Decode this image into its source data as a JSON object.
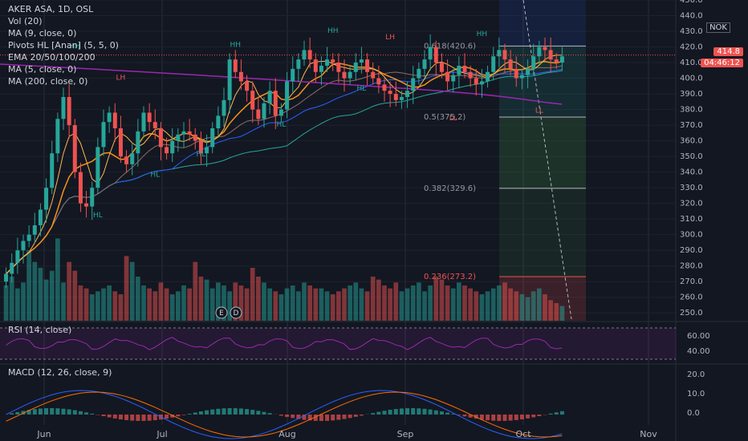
{
  "symbol_line": "AKER ASA, 1D, OSL",
  "indicators": [
    "Vol (20)",
    "MA (9, close, 0)",
    "Pivots HL [Anan] (5, 5, 0)",
    "EMA 20/50/100/200",
    "MA (5, close, 0)",
    "MA (200, close, 0)"
  ],
  "currency": "NOK",
  "last_price": "414.8",
  "countdown": "04:46:12",
  "rsi_label": "RSI (14, close)",
  "macd_label": "MACD (12, 26, close, 9)",
  "colors": {
    "background": "#131722",
    "up": "#26a69a",
    "down": "#ef5350",
    "ma_orange": "#f7931a",
    "ema_purple": "#9c27b0",
    "ema_blue": "#2962ff",
    "rsi": "#9c27b0"
  },
  "chart_data": {
    "type": "candlestick",
    "x_ticks": [
      "Jun",
      "Jul",
      "Aug",
      "Sep",
      "Oct",
      "Nov"
    ],
    "y_ticks": [
      "450.0",
      "440.0",
      "430.0",
      "420.0",
      "410.0",
      "400.0",
      "390.0",
      "380.0",
      "370.0",
      "360.0",
      "350.0",
      "340.0",
      "330.0",
      "320.0",
      "310.0",
      "300.0",
      "290.0",
      "280.0",
      "270.0",
      "260.0",
      "250.0"
    ],
    "ylim": [
      245,
      450
    ],
    "fib_levels": [
      {
        "label": "0.618(420.6)",
        "value": 420.6
      },
      {
        "label": "0.5(375.2)",
        "value": 375.2
      },
      {
        "label": "0.382(329.6)",
        "value": 329.6
      },
      {
        "label": "0.236(273.2)",
        "value": 273.2
      }
    ],
    "pivot_labels": [
      {
        "text": "HH",
        "date_index": 15,
        "value": 419
      },
      {
        "text": "LH",
        "date_index": 25,
        "value": 399
      },
      {
        "text": "HL",
        "date_index": 19,
        "value": 311
      },
      {
        "text": "HL",
        "date_index": 32,
        "value": 337
      },
      {
        "text": "HL",
        "date_index": 42,
        "value": 350
      },
      {
        "text": "HH",
        "date_index": 49,
        "value": 420
      },
      {
        "text": "HL",
        "date_index": 59,
        "value": 369
      },
      {
        "text": "HH",
        "date_index": 70,
        "value": 429
      },
      {
        "text": "LH",
        "date_index": 82,
        "value": 425
      },
      {
        "text": "HL",
        "date_index": 76,
        "value": 392
      },
      {
        "text": "HH",
        "date_index": 102,
        "value": 427
      },
      {
        "text": "LL",
        "date_index": 95,
        "value": 373
      },
      {
        "text": "LL",
        "date_index": 114,
        "value": 378
      }
    ],
    "events": [
      "E",
      "D"
    ],
    "rsi_ticks": [
      "60.00",
      "40.00"
    ],
    "macd_ticks": [
      "20.0",
      "10.0",
      "0.0"
    ],
    "closes": [
      275,
      282,
      290,
      296,
      300,
      306,
      316,
      330,
      352,
      374,
      388,
      370,
      340,
      320,
      318,
      330,
      356,
      372,
      378,
      368,
      350,
      345,
      352,
      366,
      378,
      372,
      368,
      356,
      352,
      360,
      364,
      366,
      364,
      360,
      352,
      356,
      368,
      376,
      386,
      412,
      404,
      398,
      392,
      380,
      374,
      384,
      392,
      376,
      380,
      398,
      406,
      412,
      418,
      412,
      404,
      408,
      412,
      410,
      404,
      400,
      404,
      410,
      412,
      404,
      400,
      396,
      392,
      390,
      386,
      388,
      392,
      400,
      406,
      412,
      420,
      410,
      404,
      398,
      402,
      408,
      404,
      400,
      396,
      398,
      404,
      414,
      418,
      412,
      406,
      400,
      402,
      406,
      414,
      420,
      418,
      412,
      410,
      414
    ],
    "volumes": [
      24,
      30,
      22,
      26,
      48,
      40,
      36,
      28,
      34,
      56,
      26,
      40,
      34,
      24,
      22,
      18,
      20,
      22,
      24,
      20,
      18,
      44,
      40,
      30,
      24,
      22,
      20,
      26,
      22,
      18,
      20,
      24,
      22,
      40,
      30,
      28,
      22,
      26,
      24,
      20,
      26,
      24,
      22,
      36,
      30,
      26,
      22,
      20,
      18,
      22,
      24,
      20,
      26,
      24,
      22,
      22,
      20,
      18,
      20,
      22,
      24,
      26,
      22,
      20,
      30,
      28,
      24,
      22,
      26,
      20,
      22,
      24,
      26,
      20,
      24,
      30,
      28,
      24,
      22,
      26,
      24,
      22,
      20,
      18,
      20,
      22,
      24,
      26,
      22,
      20,
      18,
      16,
      20,
      22,
      18,
      14,
      12,
      10
    ]
  }
}
